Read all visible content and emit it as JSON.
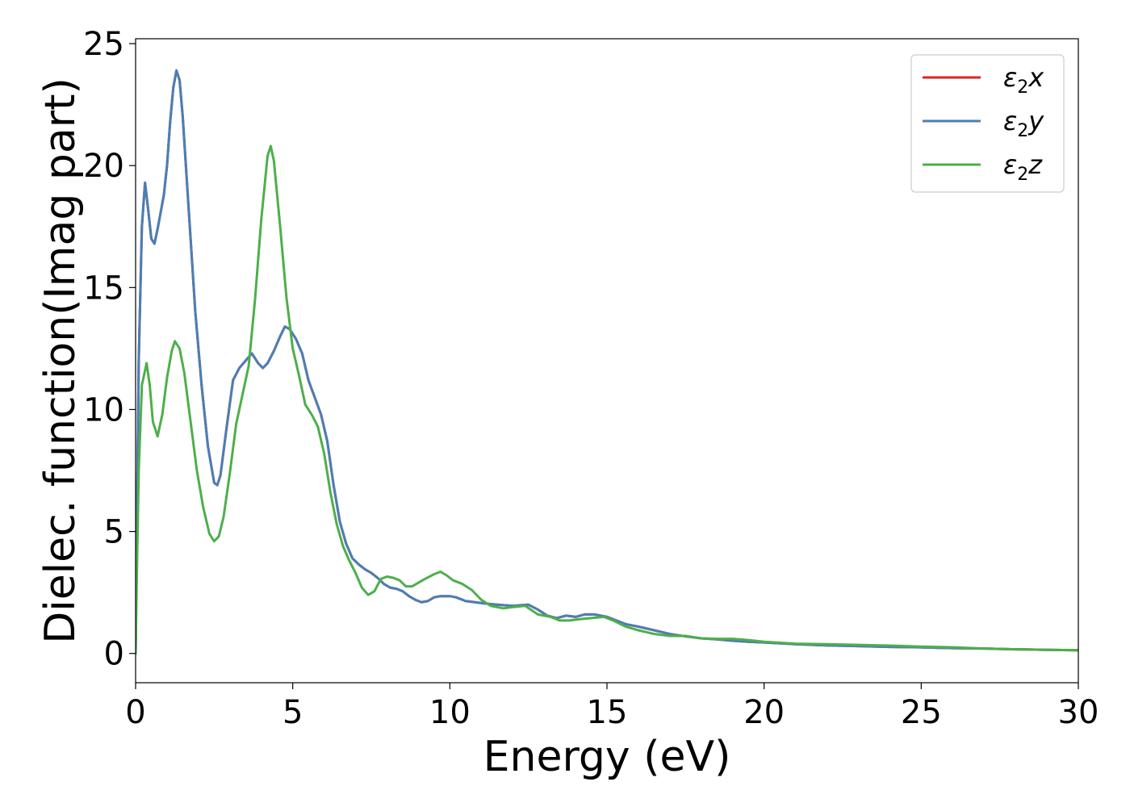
{
  "chart_data": {
    "type": "line",
    "title": "",
    "xlabel": "Energy (eV)",
    "ylabel": "Dielec. function(Imag part)",
    "xlim": [
      0,
      30
    ],
    "ylim": [
      -1.2,
      25.2
    ],
    "x_ticks": [
      0,
      5,
      10,
      15,
      20,
      25,
      30
    ],
    "x_tick_labels": [
      "0",
      "5",
      "10",
      "15",
      "20",
      "25",
      "30"
    ],
    "y_ticks": [
      0,
      5,
      10,
      15,
      20,
      25
    ],
    "y_tick_labels": [
      "0",
      "5",
      "10",
      "15",
      "20",
      "25"
    ],
    "grid": false,
    "legend_position": "top-right",
    "legend_entries": [
      "ε2x",
      "ε2y",
      "ε2z"
    ],
    "series": [
      {
        "name": "ε2x",
        "label_base": "ε",
        "label_sub": "2",
        "label_var": "x",
        "color": "#d62728",
        "points": [
          [
            0,
            0
          ],
          [
            0.05,
            6
          ],
          [
            0.1,
            12
          ],
          [
            0.2,
            17.5
          ],
          [
            0.3,
            19.3
          ],
          [
            0.4,
            18.2
          ],
          [
            0.5,
            17
          ],
          [
            0.6,
            16.8
          ],
          [
            0.7,
            17.4
          ],
          [
            0.8,
            18.1
          ],
          [
            0.9,
            18.8
          ],
          [
            1.0,
            20
          ],
          [
            1.1,
            21.8
          ],
          [
            1.2,
            23.2
          ],
          [
            1.3,
            23.9
          ],
          [
            1.4,
            23.5
          ],
          [
            1.5,
            22
          ],
          [
            1.7,
            18
          ],
          [
            1.9,
            14
          ],
          [
            2.1,
            11
          ],
          [
            2.3,
            8.5
          ],
          [
            2.5,
            7
          ],
          [
            2.6,
            6.9
          ],
          [
            2.7,
            7.3
          ],
          [
            2.9,
            9.3
          ],
          [
            3.1,
            11.2
          ],
          [
            3.3,
            11.7
          ],
          [
            3.5,
            12
          ],
          [
            3.7,
            12.3
          ],
          [
            3.9,
            11.9
          ],
          [
            4.05,
            11.7
          ],
          [
            4.2,
            11.9
          ],
          [
            4.4,
            12.4
          ],
          [
            4.6,
            13
          ],
          [
            4.75,
            13.4
          ],
          [
            4.9,
            13.3
          ],
          [
            5.1,
            12.9
          ],
          [
            5.3,
            12.3
          ],
          [
            5.5,
            11.2
          ],
          [
            5.7,
            10.5
          ],
          [
            5.9,
            9.8
          ],
          [
            6.1,
            8.7
          ],
          [
            6.3,
            6.9
          ],
          [
            6.5,
            5.4
          ],
          [
            6.7,
            4.5
          ],
          [
            6.9,
            3.9
          ],
          [
            7.1,
            3.65
          ],
          [
            7.3,
            3.45
          ],
          [
            7.5,
            3.3
          ],
          [
            7.7,
            3.1
          ],
          [
            7.9,
            2.85
          ],
          [
            8.1,
            2.7
          ],
          [
            8.3,
            2.65
          ],
          [
            8.5,
            2.55
          ],
          [
            8.7,
            2.35
          ],
          [
            8.9,
            2.2
          ],
          [
            9.1,
            2.1
          ],
          [
            9.3,
            2.15
          ],
          [
            9.5,
            2.3
          ],
          [
            9.7,
            2.35
          ],
          [
            10.0,
            2.35
          ],
          [
            10.2,
            2.3
          ],
          [
            10.5,
            2.15
          ],
          [
            10.8,
            2.1
          ],
          [
            11.1,
            2.05
          ],
          [
            11.5,
            2.0
          ],
          [
            12.0,
            1.95
          ],
          [
            12.5,
            2.0
          ],
          [
            12.8,
            1.8
          ],
          [
            13.1,
            1.55
          ],
          [
            13.4,
            1.45
          ],
          [
            13.7,
            1.55
          ],
          [
            14.0,
            1.5
          ],
          [
            14.3,
            1.6
          ],
          [
            14.6,
            1.6
          ],
          [
            15.0,
            1.5
          ],
          [
            15.3,
            1.35
          ],
          [
            15.6,
            1.2
          ],
          [
            16.0,
            1.1
          ],
          [
            16.5,
            0.95
          ],
          [
            17.0,
            0.8
          ],
          [
            17.5,
            0.7
          ],
          [
            18.0,
            0.62
          ],
          [
            18.5,
            0.58
          ],
          [
            19.0,
            0.52
          ],
          [
            19.5,
            0.48
          ],
          [
            20.0,
            0.45
          ],
          [
            21,
            0.38
          ],
          [
            22,
            0.33
          ],
          [
            23,
            0.3
          ],
          [
            24,
            0.27
          ],
          [
            25,
            0.25
          ],
          [
            26,
            0.22
          ],
          [
            27,
            0.2
          ],
          [
            28,
            0.17
          ],
          [
            29,
            0.15
          ],
          [
            30,
            0.13
          ]
        ]
      },
      {
        "name": "ε2y",
        "label_base": "ε",
        "label_sub": "2",
        "label_var": "y",
        "color": "#4a7fb5",
        "points": [
          [
            0,
            0
          ],
          [
            0.05,
            6
          ],
          [
            0.1,
            12
          ],
          [
            0.2,
            17.5
          ],
          [
            0.3,
            19.3
          ],
          [
            0.4,
            18.2
          ],
          [
            0.5,
            17
          ],
          [
            0.6,
            16.8
          ],
          [
            0.7,
            17.4
          ],
          [
            0.8,
            18.1
          ],
          [
            0.9,
            18.8
          ],
          [
            1.0,
            20
          ],
          [
            1.1,
            21.8
          ],
          [
            1.2,
            23.2
          ],
          [
            1.3,
            23.9
          ],
          [
            1.4,
            23.5
          ],
          [
            1.5,
            22
          ],
          [
            1.7,
            18
          ],
          [
            1.9,
            14
          ],
          [
            2.1,
            11
          ],
          [
            2.3,
            8.5
          ],
          [
            2.5,
            7
          ],
          [
            2.6,
            6.9
          ],
          [
            2.7,
            7.3
          ],
          [
            2.9,
            9.3
          ],
          [
            3.1,
            11.2
          ],
          [
            3.3,
            11.7
          ],
          [
            3.5,
            12
          ],
          [
            3.7,
            12.3
          ],
          [
            3.9,
            11.9
          ],
          [
            4.05,
            11.7
          ],
          [
            4.2,
            11.9
          ],
          [
            4.4,
            12.4
          ],
          [
            4.6,
            13
          ],
          [
            4.75,
            13.4
          ],
          [
            4.9,
            13.3
          ],
          [
            5.1,
            12.9
          ],
          [
            5.3,
            12.3
          ],
          [
            5.5,
            11.2
          ],
          [
            5.7,
            10.5
          ],
          [
            5.9,
            9.8
          ],
          [
            6.1,
            8.7
          ],
          [
            6.3,
            6.9
          ],
          [
            6.5,
            5.4
          ],
          [
            6.7,
            4.5
          ],
          [
            6.9,
            3.9
          ],
          [
            7.1,
            3.65
          ],
          [
            7.3,
            3.45
          ],
          [
            7.5,
            3.3
          ],
          [
            7.7,
            3.1
          ],
          [
            7.9,
            2.85
          ],
          [
            8.1,
            2.7
          ],
          [
            8.3,
            2.65
          ],
          [
            8.5,
            2.55
          ],
          [
            8.7,
            2.35
          ],
          [
            8.9,
            2.2
          ],
          [
            9.1,
            2.1
          ],
          [
            9.3,
            2.15
          ],
          [
            9.5,
            2.3
          ],
          [
            9.7,
            2.35
          ],
          [
            10.0,
            2.35
          ],
          [
            10.2,
            2.3
          ],
          [
            10.5,
            2.15
          ],
          [
            10.8,
            2.1
          ],
          [
            11.1,
            2.05
          ],
          [
            11.5,
            2.0
          ],
          [
            12.0,
            1.95
          ],
          [
            12.5,
            2.0
          ],
          [
            12.8,
            1.8
          ],
          [
            13.1,
            1.55
          ],
          [
            13.4,
            1.45
          ],
          [
            13.7,
            1.55
          ],
          [
            14.0,
            1.5
          ],
          [
            14.3,
            1.6
          ],
          [
            14.6,
            1.6
          ],
          [
            15.0,
            1.5
          ],
          [
            15.3,
            1.35
          ],
          [
            15.6,
            1.2
          ],
          [
            16.0,
            1.1
          ],
          [
            16.5,
            0.95
          ],
          [
            17.0,
            0.8
          ],
          [
            17.5,
            0.7
          ],
          [
            18.0,
            0.62
          ],
          [
            18.5,
            0.58
          ],
          [
            19.0,
            0.52
          ],
          [
            19.5,
            0.48
          ],
          [
            20.0,
            0.45
          ],
          [
            21,
            0.38
          ],
          [
            22,
            0.33
          ],
          [
            23,
            0.3
          ],
          [
            24,
            0.27
          ],
          [
            25,
            0.25
          ],
          [
            26,
            0.22
          ],
          [
            27,
            0.2
          ],
          [
            28,
            0.17
          ],
          [
            29,
            0.15
          ],
          [
            30,
            0.13
          ]
        ]
      },
      {
        "name": "ε2z",
        "label_base": "ε",
        "label_sub": "2",
        "label_var": "z",
        "color": "#4daf4a",
        "points": [
          [
            0,
            0
          ],
          [
            0.05,
            4
          ],
          [
            0.1,
            7.5
          ],
          [
            0.2,
            11
          ],
          [
            0.35,
            11.9
          ],
          [
            0.45,
            11
          ],
          [
            0.55,
            9.5
          ],
          [
            0.7,
            8.9
          ],
          [
            0.85,
            9.8
          ],
          [
            1.0,
            11.3
          ],
          [
            1.15,
            12.4
          ],
          [
            1.25,
            12.8
          ],
          [
            1.4,
            12.5
          ],
          [
            1.55,
            11.5
          ],
          [
            1.75,
            9.5
          ],
          [
            1.95,
            7.5
          ],
          [
            2.15,
            6
          ],
          [
            2.35,
            4.9
          ],
          [
            2.5,
            4.6
          ],
          [
            2.65,
            4.8
          ],
          [
            2.8,
            5.6
          ],
          [
            3.0,
            7.4
          ],
          [
            3.2,
            9.4
          ],
          [
            3.4,
            10.6
          ],
          [
            3.6,
            11.8
          ],
          [
            3.8,
            14.5
          ],
          [
            4.0,
            17.8
          ],
          [
            4.2,
            20.4
          ],
          [
            4.3,
            20.8
          ],
          [
            4.4,
            20.2
          ],
          [
            4.6,
            17.5
          ],
          [
            4.8,
            14.6
          ],
          [
            5.0,
            12.5
          ],
          [
            5.2,
            11.4
          ],
          [
            5.4,
            10.2
          ],
          [
            5.6,
            9.8
          ],
          [
            5.8,
            9.3
          ],
          [
            6.0,
            8.2
          ],
          [
            6.2,
            6.6
          ],
          [
            6.4,
            5.3
          ],
          [
            6.6,
            4.4
          ],
          [
            6.8,
            3.8
          ],
          [
            7.0,
            3.3
          ],
          [
            7.2,
            2.7
          ],
          [
            7.4,
            2.4
          ],
          [
            7.6,
            2.55
          ],
          [
            7.8,
            3.05
          ],
          [
            8.0,
            3.15
          ],
          [
            8.2,
            3.1
          ],
          [
            8.4,
            3.0
          ],
          [
            8.6,
            2.75
          ],
          [
            8.8,
            2.75
          ],
          [
            9.0,
            2.9
          ],
          [
            9.2,
            3.05
          ],
          [
            9.5,
            3.25
          ],
          [
            9.7,
            3.35
          ],
          [
            9.9,
            3.2
          ],
          [
            10.1,
            3.0
          ],
          [
            10.4,
            2.85
          ],
          [
            10.7,
            2.6
          ],
          [
            11.0,
            2.2
          ],
          [
            11.3,
            1.95
          ],
          [
            11.7,
            1.85
          ],
          [
            12.0,
            1.9
          ],
          [
            12.4,
            1.95
          ],
          [
            12.8,
            1.6
          ],
          [
            13.2,
            1.5
          ],
          [
            13.5,
            1.35
          ],
          [
            13.8,
            1.35
          ],
          [
            14.1,
            1.4
          ],
          [
            14.5,
            1.45
          ],
          [
            14.9,
            1.5
          ],
          [
            15.2,
            1.35
          ],
          [
            15.6,
            1.1
          ],
          [
            16.0,
            0.95
          ],
          [
            16.5,
            0.8
          ],
          [
            17.0,
            0.72
          ],
          [
            17.5,
            0.72
          ],
          [
            18.0,
            0.62
          ],
          [
            18.5,
            0.6
          ],
          [
            19.0,
            0.6
          ],
          [
            19.5,
            0.55
          ],
          [
            20.0,
            0.48
          ],
          [
            21,
            0.4
          ],
          [
            22,
            0.38
          ],
          [
            23,
            0.35
          ],
          [
            24,
            0.32
          ],
          [
            25,
            0.28
          ],
          [
            26,
            0.25
          ],
          [
            27,
            0.2
          ],
          [
            28,
            0.17
          ],
          [
            29,
            0.15
          ],
          [
            30,
            0.13
          ]
        ]
      }
    ]
  }
}
